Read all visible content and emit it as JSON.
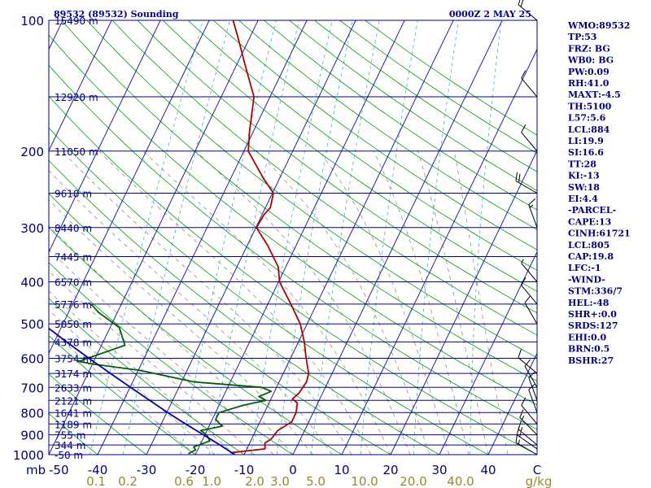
{
  "header": {
    "station": "89532 (89532) Sounding",
    "time": "0000Z  2 MAY 25"
  },
  "indices": [
    "WMO:89532",
    "TP:53",
    "FRZ: BG",
    "WB0: BG",
    "PW:0.09",
    "RH:41.0",
    "MAXT:-4.5",
    "TH:5100",
    "L57:5.6",
    "LCL:884",
    "LI:19.9",
    "SI:16.6",
    "TT:28",
    "KI:-13",
    "SW:18",
    "EI:4.4",
    "-PARCEL-",
    "CAPE:13",
    "CINH:61721",
    "LCL:805",
    "CAP:19.8",
    "LFC:-1",
    "-WIND-",
    "STM:336/7",
    "HEL:-48",
    "SHR+:0.0",
    "SRDS:127",
    "EHI:0.0",
    "BRN:0.5",
    "BSHR:27"
  ],
  "colors": {
    "isobar": "#000090",
    "frame": "#000080",
    "isotherm": "#2020a0",
    "dry_adiabat": "#00a000",
    "moist_adiabat": "#909090",
    "mixing_ratio": "#40b0d0",
    "temperature": "#b00000",
    "dewpoint": "#006000",
    "parcel": "#0000b0",
    "mix_label": "#9a8a2a"
  },
  "chart_data": {
    "type": "skew-t",
    "y_scale": "log-pressure",
    "ylim": [
      1000,
      100
    ],
    "xlim": [
      -50,
      50
    ],
    "pressure_ticks": [
      "100",
      "200",
      "300",
      "400",
      "500",
      "600",
      "700",
      "800",
      "900",
      "1000"
    ],
    "temp_ticks": [
      "-50",
      "-40",
      "-30",
      "-20",
      "-10",
      "0",
      "10",
      "20",
      "30",
      "40",
      "C"
    ],
    "temp_tick_values": [
      -50,
      -40,
      -30,
      -20,
      -10,
      0,
      10,
      20,
      30,
      40
    ],
    "x_axis_prefix": "mb",
    "mixing_ratio_labels": [
      "0.1",
      "0.2",
      "0.6",
      "1.0",
      "2.0",
      "3.0",
      "5.0",
      "10.0",
      "20.0",
      "40.0",
      "g/kg"
    ],
    "mixing_ratio_values": [
      0.1,
      0.2,
      0.6,
      1.0,
      2.0,
      3.0,
      5.0,
      10.0,
      20.0,
      40.0
    ],
    "height_levels": [
      {
        "p": 100,
        "label": "15490 m"
      },
      {
        "p": 150,
        "label": "12920 m"
      },
      {
        "p": 200,
        "label": "11050 m"
      },
      {
        "p": 250,
        "label": "9610 m"
      },
      {
        "p": 300,
        "label": "8440 m"
      },
      {
        "p": 350,
        "label": "7445 m"
      },
      {
        "p": 400,
        "label": "6570 m"
      },
      {
        "p": 450,
        "label": "5776 m"
      },
      {
        "p": 500,
        "label": "5050 m"
      },
      {
        "p": 550,
        "label": "4378 m"
      },
      {
        "p": 600,
        "label": "3754 m"
      },
      {
        "p": 650,
        "label": "3174 m"
      },
      {
        "p": 700,
        "label": "2633 m"
      },
      {
        "p": 750,
        "label": "2121 m"
      },
      {
        "p": 800,
        "label": "1641 m"
      },
      {
        "p": 850,
        "label": "1189 m"
      },
      {
        "p": 900,
        "label": "755 m"
      },
      {
        "p": 950,
        "label": "344 m"
      },
      {
        "p": 1000,
        "label": "-50 m"
      }
    ],
    "series": [
      {
        "key": "temperature",
        "points": [
          [
            990,
            -13.0
          ],
          [
            970,
            -6.3
          ],
          [
            940,
            -6.9
          ],
          [
            920,
            -6.0
          ],
          [
            880,
            -5.5
          ],
          [
            840,
            -3.5
          ],
          [
            800,
            -3.5
          ],
          [
            760,
            -4.2
          ],
          [
            745,
            -5.6
          ],
          [
            720,
            -4.8
          ],
          [
            700,
            -4.6
          ],
          [
            680,
            -4.4
          ],
          [
            650,
            -4.8
          ],
          [
            600,
            -6.8
          ],
          [
            550,
            -8.8
          ],
          [
            500,
            -11.4
          ],
          [
            450,
            -15.3
          ],
          [
            400,
            -19.8
          ],
          [
            370,
            -21.5
          ],
          [
            330,
            -25.8
          ],
          [
            300,
            -29.9
          ],
          [
            280,
            -29.6
          ],
          [
            270,
            -29.0
          ],
          [
            250,
            -29.8
          ],
          [
            230,
            -33.5
          ],
          [
            200,
            -39.1
          ],
          [
            180,
            -40.8
          ],
          [
            160,
            -42.4
          ],
          [
            150,
            -43.3
          ],
          [
            130,
            -47.5
          ],
          [
            110,
            -52.3
          ],
          [
            100,
            -55.1
          ]
        ]
      },
      {
        "key": "dewpoint",
        "points": [
          [
            995,
            -21.5
          ],
          [
            975,
            -20.4
          ],
          [
            960,
            -21.1
          ],
          [
            930,
            -18.4
          ],
          [
            900,
            -19.6
          ],
          [
            880,
            -21.3
          ],
          [
            860,
            -17.3
          ],
          [
            830,
            -19.3
          ],
          [
            800,
            -19.3
          ],
          [
            770,
            -15.1
          ],
          [
            750,
            -10.9
          ],
          [
            735,
            -12.7
          ],
          [
            715,
            -10.7
          ],
          [
            700,
            -13.0
          ],
          [
            680,
            -27.4
          ],
          [
            640,
            -39.5
          ],
          [
            620,
            -49.3
          ],
          [
            610,
            -53.1
          ],
          [
            560,
            -45.2
          ],
          [
            510,
            -48.1
          ],
          [
            470,
            -53.9
          ],
          [
            450,
            -56.2
          ]
        ]
      },
      {
        "key": "parcel",
        "points": [
          [
            1000,
            -11.9
          ],
          [
            950,
            -15.9
          ],
          [
            900,
            -20.3
          ],
          [
            850,
            -25.0
          ],
          [
            800,
            -29.8
          ],
          [
            750,
            -34.7
          ],
          [
            700,
            -39.9
          ],
          [
            650,
            -45.4
          ],
          [
            600,
            -51.3
          ],
          [
            550,
            -57.5
          ],
          [
            500,
            -64.1
          ],
          [
            450,
            -71.2
          ],
          [
            400,
            -79.0
          ],
          [
            350,
            -87.6
          ],
          [
            300,
            -97.3
          ],
          [
            250,
            -108.4
          ],
          [
            200,
            -121.6
          ],
          [
            150,
            -137.9
          ],
          [
            120,
            -150.0
          ]
        ]
      }
    ],
    "wind_barbs": [
      {
        "p": 1000,
        "dir": 300,
        "spd": 15
      },
      {
        "p": 970,
        "dir": 305,
        "spd": 15
      },
      {
        "p": 950,
        "dir": 310,
        "spd": 15
      },
      {
        "p": 900,
        "dir": 315,
        "spd": 15
      },
      {
        "p": 850,
        "dir": 320,
        "spd": 10
      },
      {
        "p": 800,
        "dir": 340,
        "spd": 10
      },
      {
        "p": 750,
        "dir": 340,
        "spd": 10
      },
      {
        "p": 700,
        "dir": 330,
        "spd": 10
      },
      {
        "p": 650,
        "dir": 310,
        "spd": 10
      },
      {
        "p": 500,
        "dir": 330,
        "spd": 10
      },
      {
        "p": 450,
        "dir": 320,
        "spd": 10
      },
      {
        "p": 400,
        "dir": 320,
        "spd": 5
      },
      {
        "p": 300,
        "dir": 340,
        "spd": 15
      },
      {
        "p": 250,
        "dir": 300,
        "spd": 20
      },
      {
        "p": 200,
        "dir": 320,
        "spd": 10
      },
      {
        "p": 150,
        "dir": 320,
        "spd": 10
      },
      {
        "p": 100,
        "dir": 310,
        "spd": 20
      }
    ]
  }
}
